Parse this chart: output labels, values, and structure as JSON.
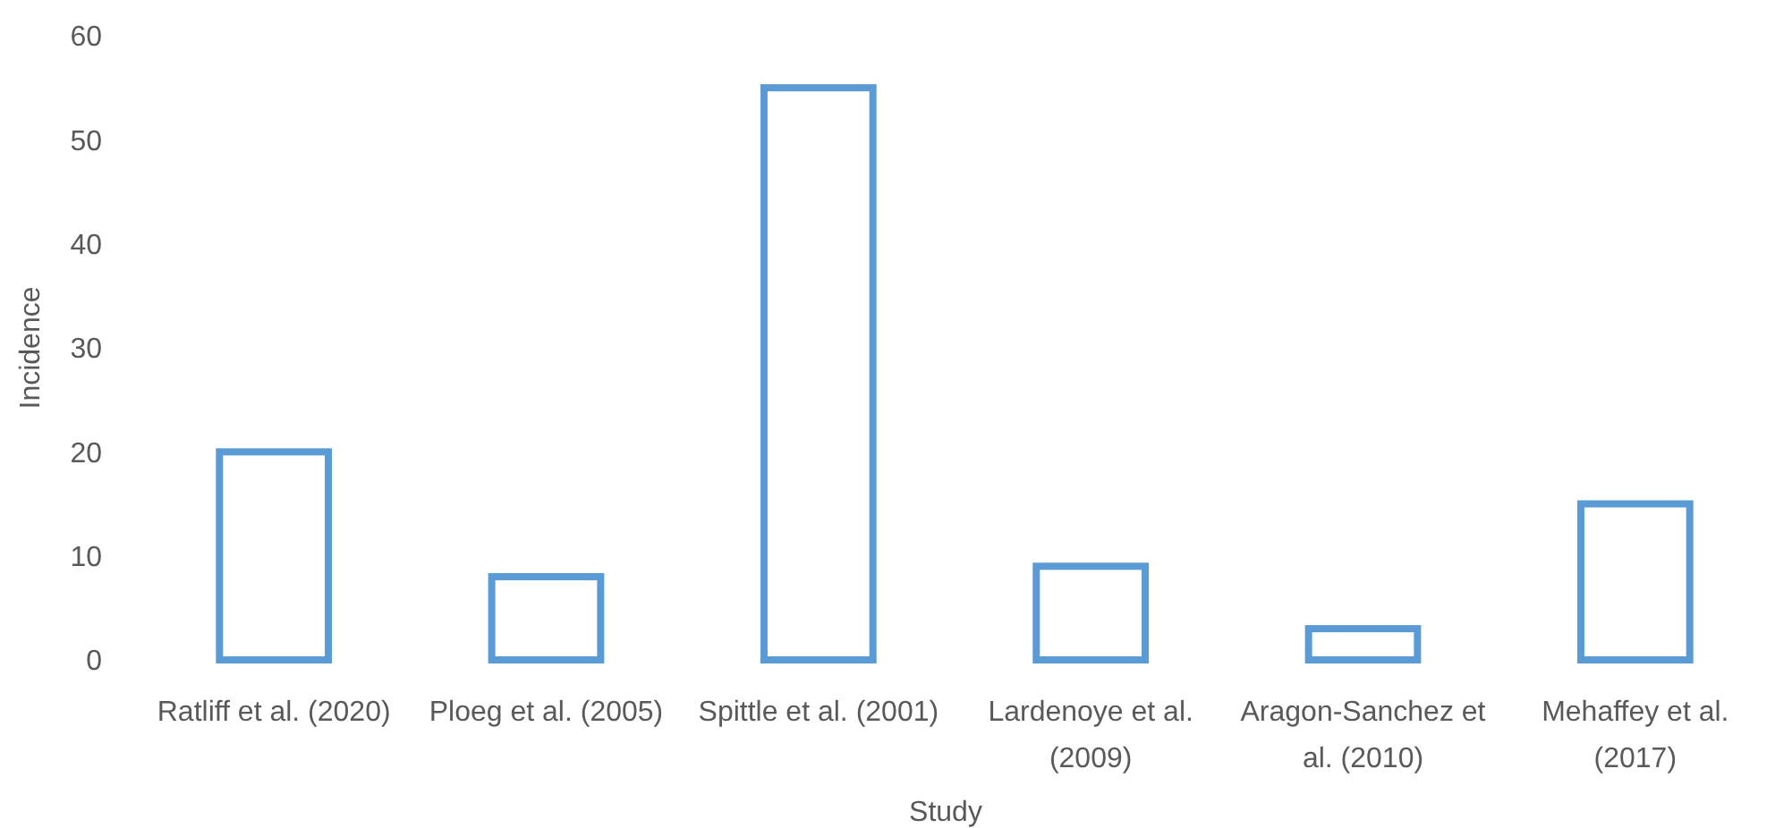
{
  "chart_data": {
    "type": "bar",
    "xlabel": "Study",
    "ylabel": "Incidence",
    "categories": [
      "Ratliff et al. (2020)",
      "Ploeg et al. (2005)",
      "Spittle et al. (2001)",
      "Lardenoye et al. (2009)",
      "Aragon-Sanchez et al. (2010)",
      "Mehaffey et al. (2017)"
    ],
    "values": [
      20,
      8,
      55,
      9,
      3,
      15
    ],
    "color": "#5b9bd5",
    "ylim": [
      0,
      60
    ],
    "yticks": [
      0,
      10,
      20,
      30,
      40,
      50,
      60
    ],
    "grid": false
  }
}
